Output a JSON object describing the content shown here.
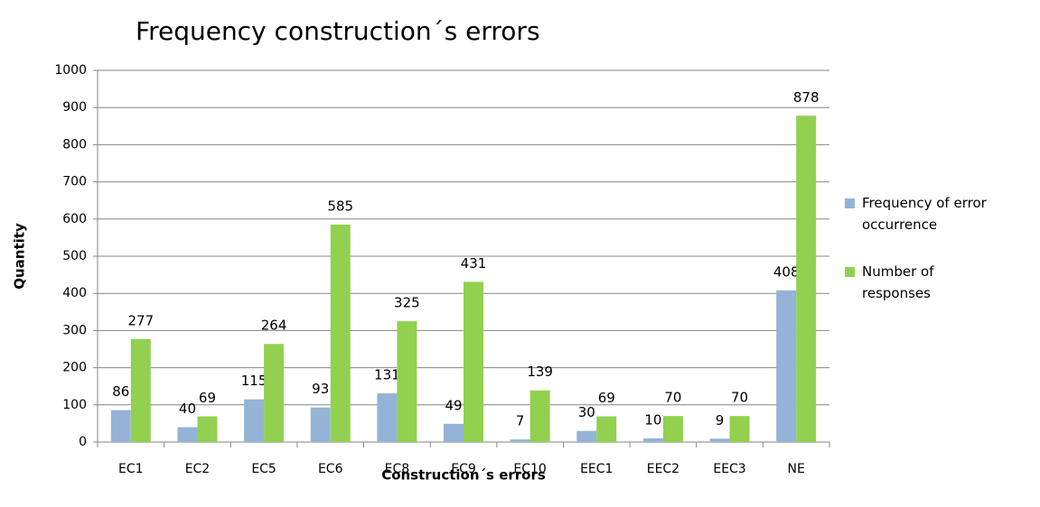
{
  "chart_data": {
    "type": "bar",
    "title": "Frequency construction´s errors",
    "x_label": "Construction´s errors",
    "y_label": "Quantity",
    "categories": [
      "EC1",
      "EC2",
      "EC5",
      "EC6",
      "EC8",
      "EC9",
      "EC10",
      "EEC1",
      "EEC2",
      "EEC3",
      "NE"
    ],
    "series": [
      {
        "name": "Frequency of error occurrence",
        "color": "#95b3d7",
        "values": [
          86,
          40,
          115,
          93,
          131,
          49,
          7,
          30,
          10,
          9,
          408
        ]
      },
      {
        "name": "Number of responses",
        "color": "#92d050",
        "values": [
          277,
          69,
          264,
          585,
          325,
          431,
          139,
          69,
          70,
          70,
          878
        ]
      }
    ],
    "ylim": [
      0,
      1000
    ],
    "yticks": [
      0,
      100,
      200,
      300,
      400,
      500,
      600,
      700,
      800,
      900,
      1000
    ],
    "grid": true,
    "legend": "right"
  }
}
